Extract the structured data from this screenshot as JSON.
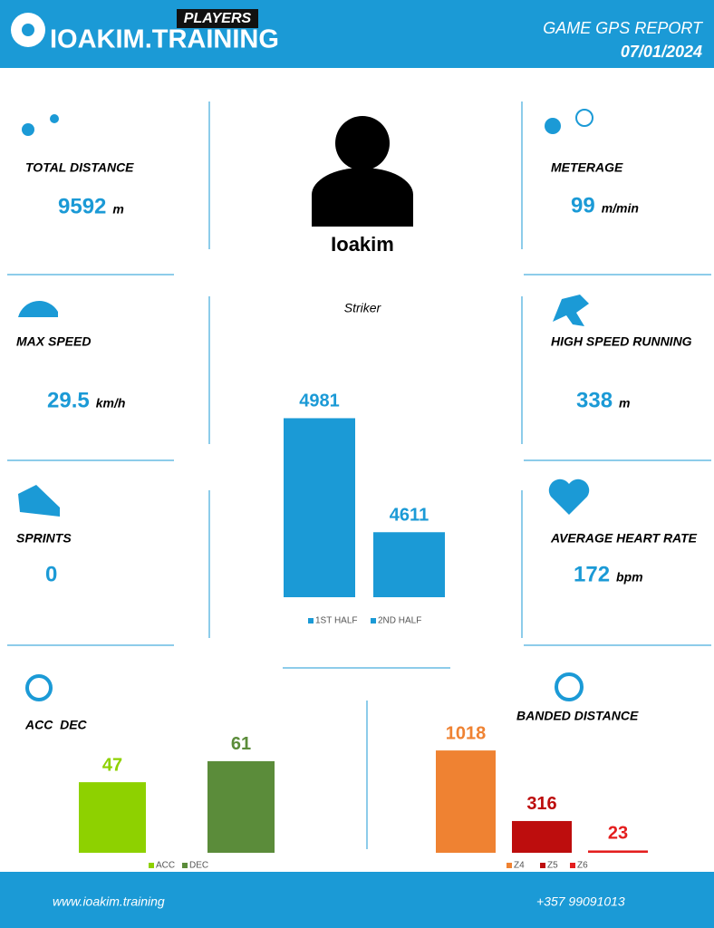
{
  "header": {
    "brand_tag": "PLAYERS",
    "brand": "IOAKIM.TRAINING",
    "report_title": "GAME GPS REPORT",
    "date": "07/01/2024"
  },
  "player": {
    "name": "Ioakim",
    "position": "Striker"
  },
  "stats": [
    {
      "label": "TOTAL DISTANCE",
      "value": 9592,
      "unit": "m"
    },
    {
      "label": "METERAGE",
      "value": 99,
      "unit": "m/min"
    },
    {
      "label": "MAX SPEED",
      "value": 29.5,
      "unit": "km/h"
    },
    {
      "label": "HIGH SPEED RUNNING",
      "value": 338,
      "unit": "m"
    },
    {
      "label": "SPRINTS",
      "value": 0
    },
    {
      "label": "AVERAGE HEART RATE",
      "value": 172,
      "unit": "bpm"
    }
  ],
  "charts": {
    "halves": {
      "type": "bar",
      "ylim": [
        4400,
        5000
      ],
      "series": [
        {
          "name": "1ST HALF",
          "color": "#1b9ad6",
          "values": [
            4981
          ]
        },
        {
          "name": "2ND HALF",
          "color": "#1b9ad6",
          "values": [
            4611
          ]
        }
      ]
    },
    "acc_dec": {
      "type": "bar",
      "title": "ACC  DEC",
      "ylim": [
        0,
        70
      ],
      "series": [
        {
          "name": "ACC",
          "color": "#8ed100",
          "values": [
            47
          ]
        },
        {
          "name": "DEC",
          "color": "#5b8c3a",
          "values": [
            61
          ]
        }
      ]
    },
    "banded": {
      "type": "bar",
      "title": "BANDED DISTANCE",
      "ylim": [
        0,
        1100
      ],
      "series": [
        {
          "name": "Z4",
          "color": "#ef8232",
          "values": [
            1018
          ]
        },
        {
          "name": "Z5",
          "color": "#bd0d0d",
          "values": [
            316
          ]
        },
        {
          "name": "Z6",
          "color": "#e41e1e",
          "values": [
            23
          ]
        }
      ]
    }
  },
  "footer": {
    "website": "www.ioakim.training",
    "phone": "+357 99091013"
  }
}
